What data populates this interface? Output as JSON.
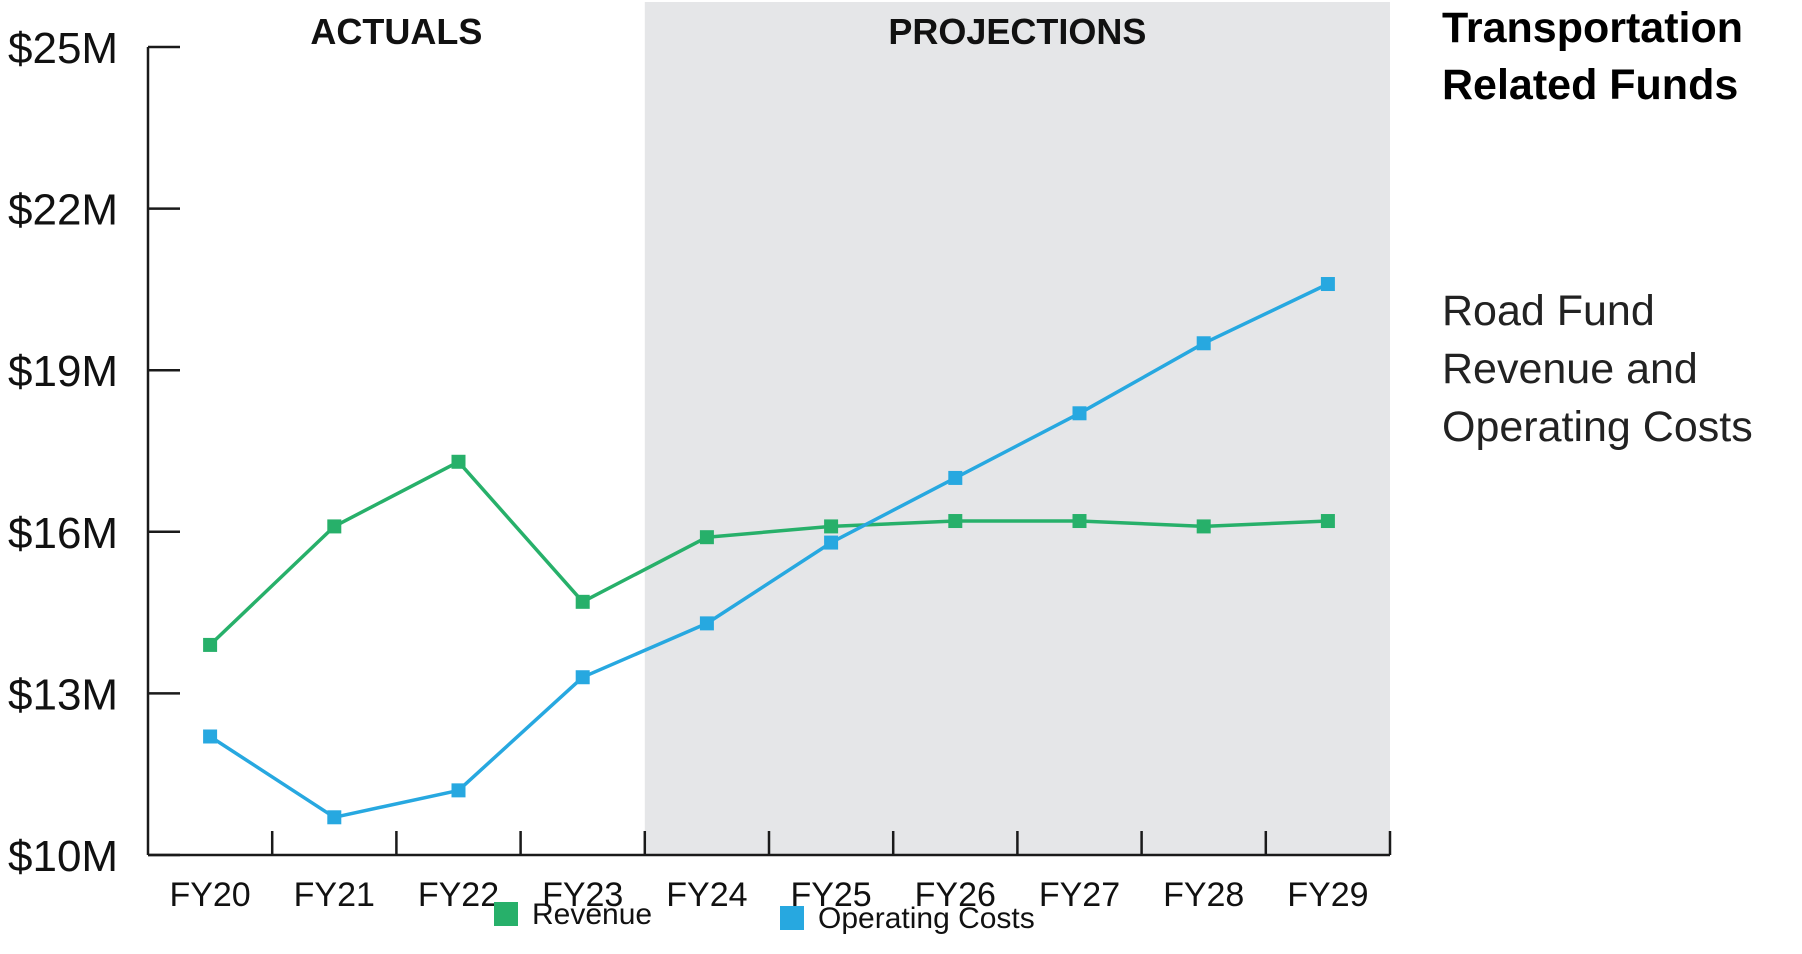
{
  "title": "Transportation Related Funds",
  "subtitle": "Road Fund Revenue and Operating Costs",
  "zones": {
    "actuals": "ACTUALS",
    "projections": "PROJECTIONS"
  },
  "colors": {
    "revenue": "#27b06a",
    "operating_costs": "#27a8e0",
    "projection_band": "#e5e6e8",
    "axis": "#1a1a1a"
  },
  "chart_data": {
    "type": "line",
    "categories": [
      "FY20",
      "FY21",
      "FY22",
      "FY23",
      "FY24",
      "FY25",
      "FY26",
      "FY27",
      "FY28",
      "FY29"
    ],
    "y_ticks": [
      "$10M",
      "$13M",
      "$16M",
      "$19M",
      "$22M",
      "$25M"
    ],
    "y_tick_values": [
      10,
      13,
      16,
      19,
      22,
      25
    ],
    "ylim": [
      10,
      25
    ],
    "projection_start_index": 4,
    "series": [
      {
        "name": "Revenue",
        "color": "#27b06a",
        "values": [
          13.9,
          16.1,
          17.3,
          14.7,
          15.9,
          16.1,
          16.2,
          16.2,
          16.1,
          16.2
        ]
      },
      {
        "name": "Operating Costs",
        "color": "#27a8e0",
        "values": [
          12.2,
          10.7,
          11.2,
          13.3,
          14.3,
          15.8,
          17.0,
          18.2,
          19.5,
          20.6
        ]
      }
    ],
    "legend_position": "bottom",
    "grid": false
  }
}
